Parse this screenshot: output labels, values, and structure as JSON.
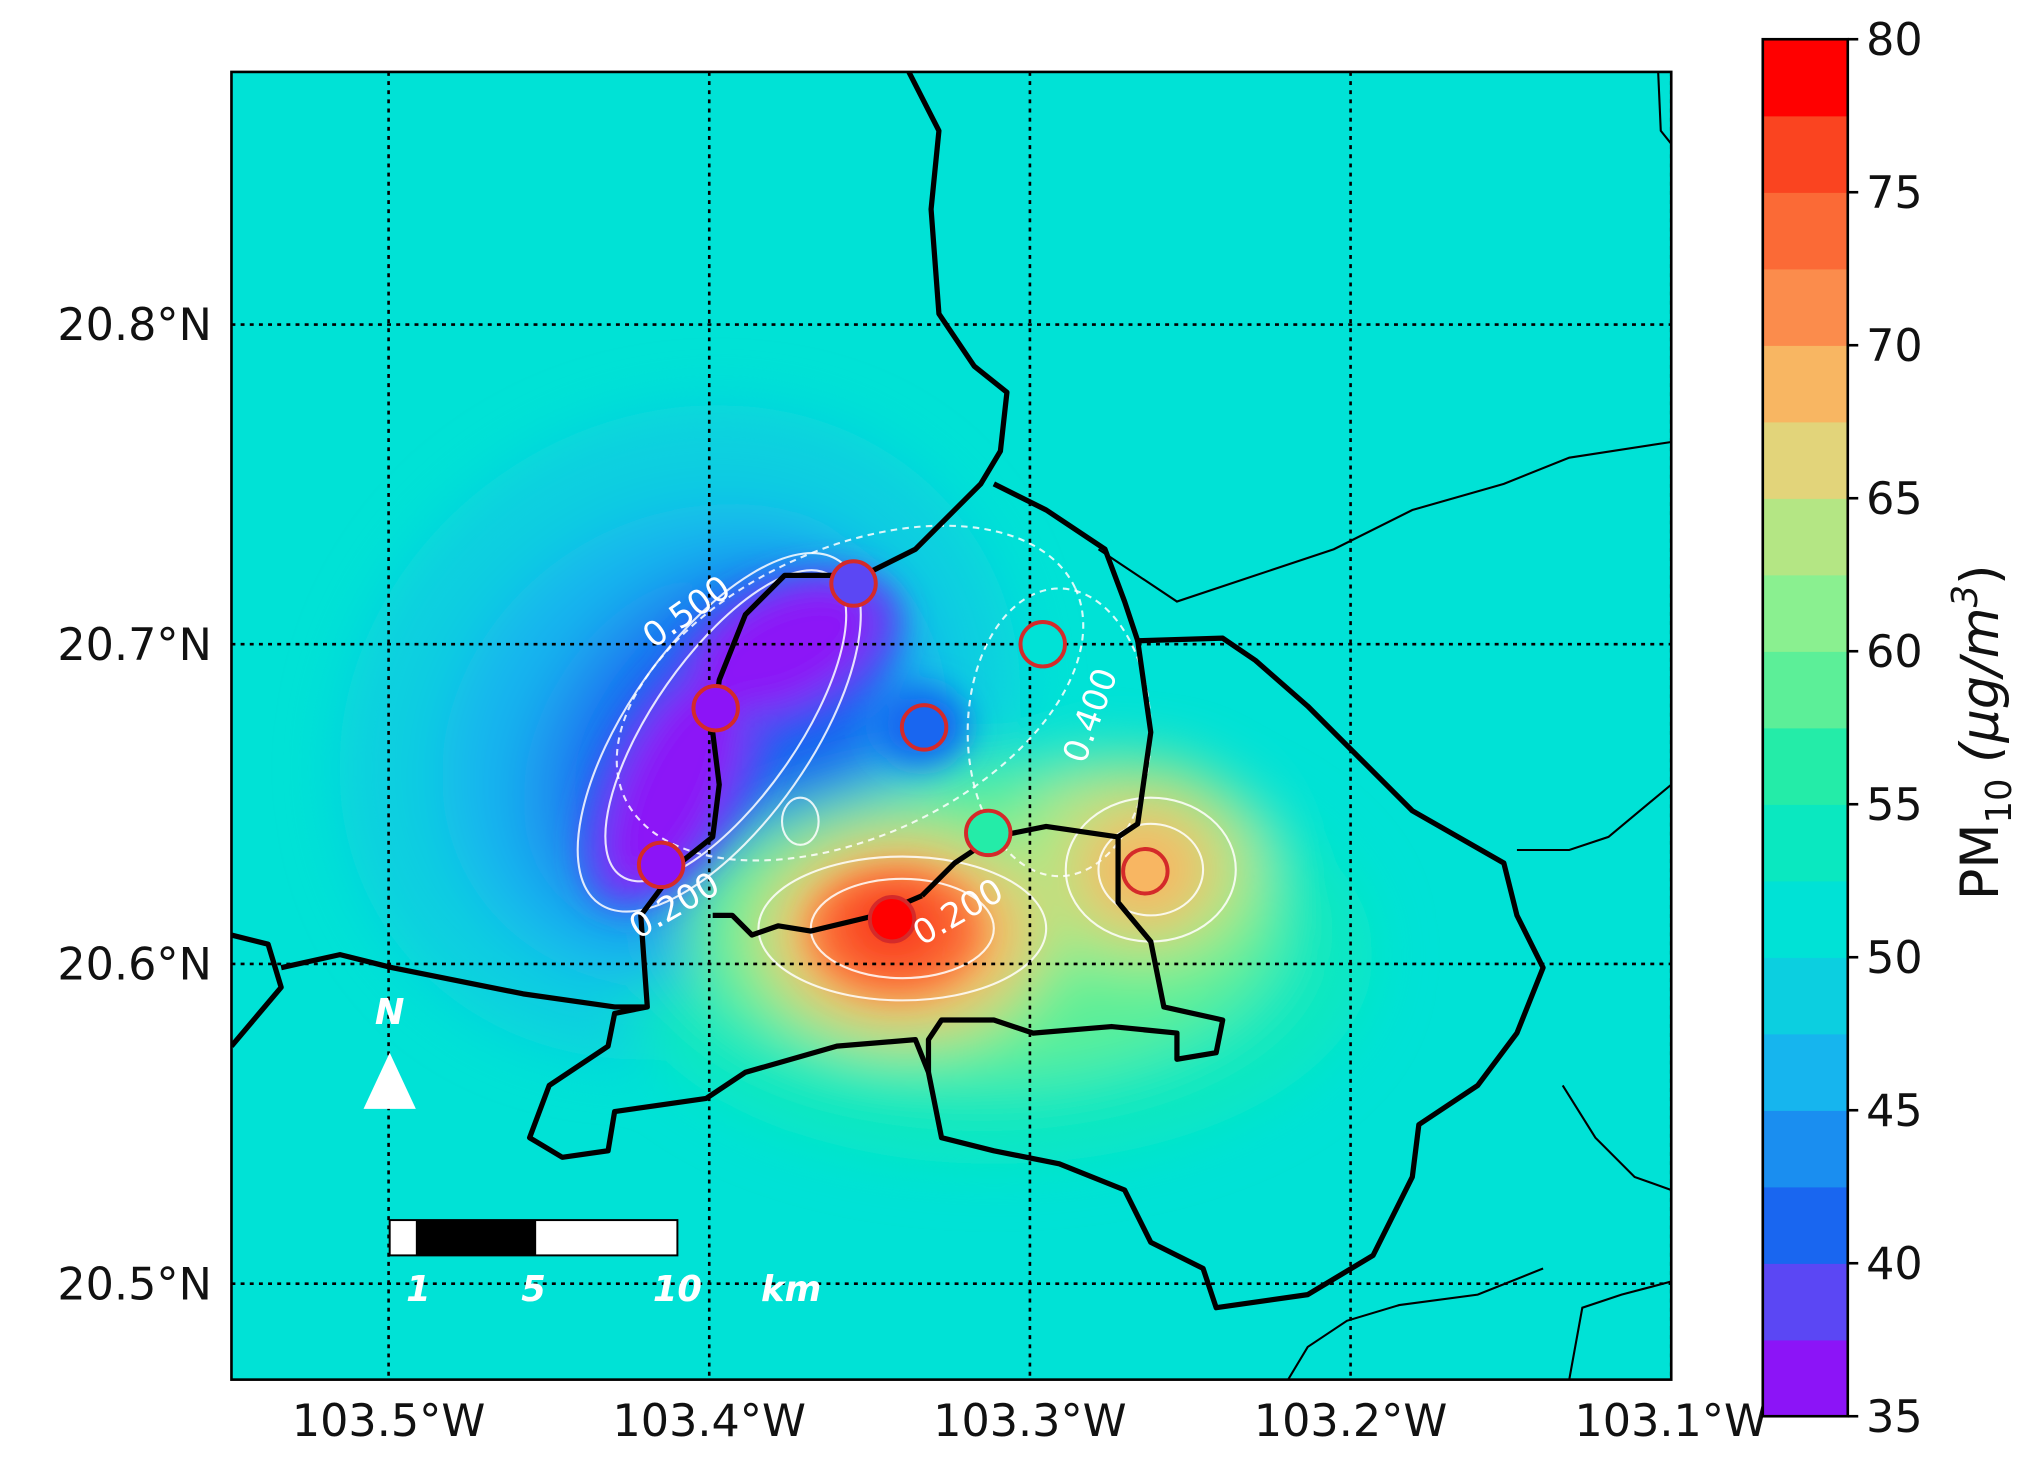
{
  "map": {
    "xlim": [
      -103.549,
      -103.1
    ],
    "ylim": [
      20.47,
      20.879
    ],
    "xticks": [
      {
        "value": -103.5,
        "label": "103.5°W"
      },
      {
        "value": -103.4,
        "label": "103.4°W"
      },
      {
        "value": -103.3,
        "label": "103.3°W"
      },
      {
        "value": -103.2,
        "label": "103.2°W"
      },
      {
        "value": -103.1,
        "label": "103.1°W"
      }
    ],
    "yticks": [
      {
        "value": 20.5,
        "label": "20.5°N"
      },
      {
        "value": 20.6,
        "label": "20.6°N"
      },
      {
        "value": 20.7,
        "label": "20.7°N"
      },
      {
        "value": 20.8,
        "label": "20.8°N"
      }
    ],
    "grid": true,
    "background_color": "#00e2d6"
  },
  "stations": [
    {
      "lon": -103.355,
      "lat": 20.719,
      "value": 38
    },
    {
      "lon": -103.398,
      "lat": 20.68,
      "value": 36
    },
    {
      "lon": -103.333,
      "lat": 20.674,
      "value": 42
    },
    {
      "lon": -103.296,
      "lat": 20.7,
      "value": 51
    },
    {
      "lon": -103.415,
      "lat": 20.631,
      "value": 37
    },
    {
      "lon": -103.313,
      "lat": 20.641,
      "value": 56
    },
    {
      "lon": -103.343,
      "lat": 20.614,
      "value": 78
    },
    {
      "lon": -103.264,
      "lat": 20.629,
      "value": 69
    }
  ],
  "colorbar": {
    "lim": [
      35,
      80
    ],
    "ticks": [
      35,
      40,
      45,
      50,
      55,
      60,
      65,
      70,
      75,
      80
    ],
    "colors": [
      "#8c14f7",
      "#5b47f4",
      "#1966f0",
      "#1a8ef0",
      "#16b5ee",
      "#0ccfe0",
      "#00e2d6",
      "#0ae8c0",
      "#24eca8",
      "#5cef98",
      "#8af090",
      "#b4e684",
      "#e2d47a",
      "#f8b662",
      "#fb8c4c",
      "#fb6a36",
      "#fa4420",
      "#ff0000"
    ],
    "label": {
      "name": "PM",
      "sub": "10",
      "unit": "(μg/m",
      "unit_sup": "3",
      "unit_close": ")"
    }
  },
  "contour_labels": [
    "0.500",
    "0.400",
    "0.200",
    "0.200"
  ],
  "north": "N",
  "scale_bar": {
    "labels": [
      "1",
      "5",
      "10",
      "km"
    ]
  }
}
